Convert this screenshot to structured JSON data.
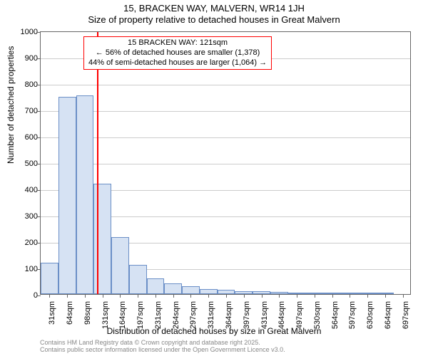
{
  "chart": {
    "type": "histogram",
    "title_line1": "15, BRACKEN WAY, MALVERN, WR14 1JH",
    "title_line2": "Size of property relative to detached houses in Great Malvern",
    "title_fontsize": 13,
    "x_axis_label": "Distribution of detached houses by size in Great Malvern",
    "y_axis_label": "Number of detached properties",
    "label_fontsize": 12,
    "tick_fontsize": 11,
    "background_color": "#ffffff",
    "grid_color": "#cccccc",
    "axis_color": "#666666",
    "ylim": [
      0,
      1000
    ],
    "ytick_step": 100,
    "yticks": [
      0,
      100,
      200,
      300,
      400,
      500,
      600,
      700,
      800,
      900,
      1000
    ],
    "categories": [
      "31sqm",
      "64sqm",
      "98sqm",
      "131sqm",
      "164sqm",
      "197sqm",
      "231sqm",
      "264sqm",
      "297sqm",
      "331sqm",
      "364sqm",
      "397sqm",
      "431sqm",
      "464sqm",
      "497sqm",
      "530sqm",
      "564sqm",
      "597sqm",
      "630sqm",
      "664sqm",
      "697sqm"
    ],
    "values": [
      120,
      750,
      755,
      420,
      215,
      110,
      60,
      40,
      30,
      20,
      15,
      12,
      10,
      8,
      6,
      4,
      3,
      2,
      2,
      2,
      0
    ],
    "bar_color": "#d6e2f3",
    "bar_border_color": "#6b8fc7",
    "bar_width_ratio": 1.0,
    "marker": {
      "color": "#ff0000",
      "position_category_index": 2.7
    },
    "annotation": {
      "line1": "15 BRACKEN WAY: 121sqm",
      "line2": "← 56% of detached houses are smaller (1,378)",
      "line3": "44% of semi-detached houses are larger (1,064) →",
      "border_color": "#ff0000",
      "background_color": "#ffffff",
      "fontsize": 11
    }
  },
  "footnote": {
    "line1": "Contains HM Land Registry data © Crown copyright and database right 2025.",
    "line2": "Contains public sector information licensed under the Open Government Licence v3.0.",
    "color": "#888888",
    "fontsize": 9
  }
}
